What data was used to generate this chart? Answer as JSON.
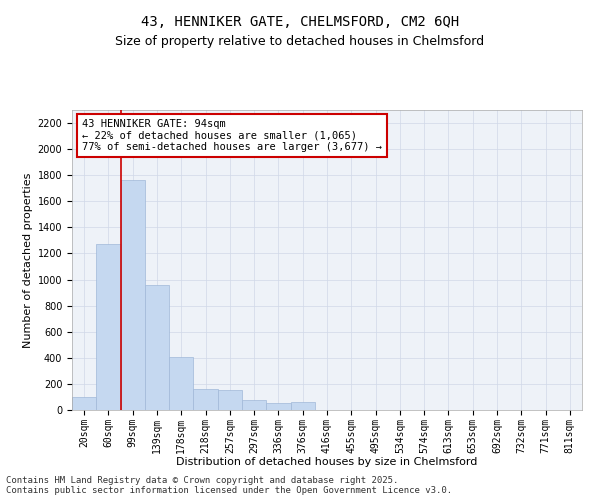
{
  "title_line1": "43, HENNIKER GATE, CHELMSFORD, CM2 6QH",
  "title_line2": "Size of property relative to detached houses in Chelmsford",
  "xlabel": "Distribution of detached houses by size in Chelmsford",
  "ylabel": "Number of detached properties",
  "categories": [
    "20sqm",
    "60sqm",
    "99sqm",
    "139sqm",
    "178sqm",
    "218sqm",
    "257sqm",
    "297sqm",
    "336sqm",
    "376sqm",
    "416sqm",
    "455sqm",
    "495sqm",
    "534sqm",
    "574sqm",
    "613sqm",
    "653sqm",
    "692sqm",
    "732sqm",
    "771sqm",
    "811sqm"
  ],
  "values": [
    100,
    1270,
    1760,
    960,
    410,
    160,
    155,
    75,
    50,
    60,
    0,
    0,
    0,
    0,
    0,
    0,
    0,
    0,
    0,
    0,
    0
  ],
  "bar_color": "#c5d8f0",
  "bar_edge_color": "#a0b8d8",
  "vline_color": "#cc0000",
  "vline_x_index": 1.5,
  "annotation_text": "43 HENNIKER GATE: 94sqm\n← 22% of detached houses are smaller (1,065)\n77% of semi-detached houses are larger (3,677) →",
  "annotation_box_color": "#ffffff",
  "annotation_box_edge": "#cc0000",
  "ylim": [
    0,
    2300
  ],
  "yticks": [
    0,
    200,
    400,
    600,
    800,
    1000,
    1200,
    1400,
    1600,
    1800,
    2000,
    2200
  ],
  "footer_line1": "Contains HM Land Registry data © Crown copyright and database right 2025.",
  "footer_line2": "Contains public sector information licensed under the Open Government Licence v3.0.",
  "bg_color": "#ffffff",
  "plot_bg_color": "#eef2f8",
  "grid_color": "#d0d8e8",
  "title1_fontsize": 10,
  "title2_fontsize": 9,
  "axis_label_fontsize": 8,
  "tick_fontsize": 7,
  "annotation_fontsize": 7.5,
  "footer_fontsize": 6.5
}
